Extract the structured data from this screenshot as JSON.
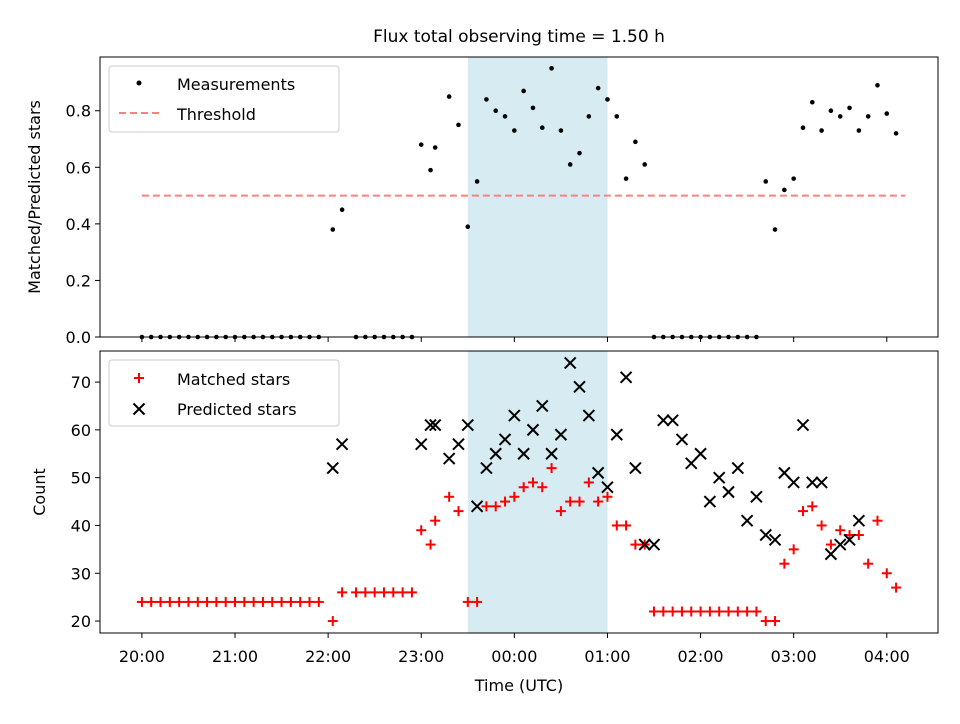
{
  "figure": {
    "title": "Flux total observing time = 1.50 h",
    "xlabel": "Time (UTC)",
    "x_ticks": [
      "20:00",
      "21:00",
      "22:00",
      "23:00",
      "00:00",
      "01:00",
      "02:00",
      "03:00",
      "04:00"
    ]
  },
  "colors": {
    "measurements": "#000000",
    "threshold": "#ff7f7f",
    "matched": "#ff0000",
    "predicted": "#000000",
    "shade": "#add8e6"
  },
  "chart_data": [
    {
      "type": "scatter",
      "ylabel": "Matched/Predicted stars",
      "ylim": [
        0,
        0.99
      ],
      "yticks": [
        "0.0",
        "0.2",
        "0.4",
        "0.6",
        "0.8"
      ],
      "shaded_span_hours": [
        23.5,
        25.0
      ],
      "legend": {
        "placement": "upper-left",
        "entries": [
          "Measurements",
          "Threshold"
        ]
      },
      "threshold": {
        "name": "Threshold",
        "value": 0.5,
        "x_range": [
          20.0,
          28.2
        ]
      },
      "series": [
        {
          "name": "Measurements",
          "marker": "dot",
          "x": [
            20.0,
            20.1,
            20.2,
            20.3,
            20.4,
            20.5,
            20.6,
            20.7,
            20.8,
            20.9,
            21.0,
            21.1,
            21.2,
            21.3,
            21.4,
            21.5,
            21.6,
            21.7,
            21.8,
            21.9,
            22.05,
            22.15,
            22.3,
            22.4,
            22.5,
            22.6,
            22.7,
            22.8,
            22.9,
            23.0,
            23.1,
            23.15,
            23.3,
            23.4,
            23.5,
            23.6,
            23.7,
            23.8,
            23.9,
            24.0,
            24.1,
            24.2,
            24.3,
            24.4,
            24.5,
            24.6,
            24.7,
            24.8,
            24.9,
            25.0,
            25.1,
            25.2,
            25.3,
            25.4,
            25.5,
            25.6,
            25.7,
            25.8,
            25.9,
            26.0,
            26.1,
            26.2,
            26.3,
            26.4,
            26.5,
            26.6,
            26.7,
            26.8,
            26.9,
            27.0,
            27.1,
            27.2,
            27.3,
            27.4,
            27.5,
            27.6,
            27.7,
            27.8,
            27.9,
            28.0,
            28.1
          ],
          "y": [
            0,
            0,
            0,
            0,
            0,
            0,
            0,
            0,
            0,
            0,
            0,
            0,
            0,
            0,
            0,
            0,
            0,
            0,
            0,
            0,
            0.38,
            0.45,
            0,
            0,
            0,
            0,
            0,
            0,
            0,
            0.68,
            0.59,
            0.67,
            0.85,
            0.75,
            0.39,
            0.55,
            0.84,
            0.8,
            0.78,
            0.73,
            0.87,
            0.81,
            0.74,
            0.95,
            0.73,
            0.61,
            0.65,
            0.78,
            0.88,
            0.84,
            0.78,
            0.56,
            0.69,
            0.61,
            0,
            0,
            0,
            0,
            0,
            0,
            0,
            0,
            0,
            0,
            0,
            0,
            0.55,
            0.38,
            0.52,
            0.56,
            0.74,
            0.83,
            0.73,
            0.8,
            0.78,
            0.81,
            0.73,
            0.78,
            0.89,
            0.79,
            0.72
          ]
        }
      ]
    },
    {
      "type": "scatter",
      "ylabel": "Count",
      "ylim": [
        17.5,
        76.5
      ],
      "yticks": [
        "20",
        "30",
        "40",
        "50",
        "60",
        "70"
      ],
      "shaded_span_hours": [
        23.5,
        25.0
      ],
      "legend": {
        "placement": "upper-left",
        "entries": [
          "Matched stars",
          "Predicted stars"
        ]
      },
      "series": [
        {
          "name": "Matched stars",
          "marker": "plus",
          "x": [
            20.0,
            20.1,
            20.2,
            20.3,
            20.4,
            20.5,
            20.6,
            20.7,
            20.8,
            20.9,
            21.0,
            21.1,
            21.2,
            21.3,
            21.4,
            21.5,
            21.6,
            21.7,
            21.8,
            21.9,
            22.05,
            22.15,
            22.3,
            22.4,
            22.5,
            22.6,
            22.7,
            22.8,
            22.9,
            23.0,
            23.1,
            23.15,
            23.3,
            23.4,
            23.5,
            23.6,
            23.7,
            23.8,
            23.9,
            24.0,
            24.1,
            24.2,
            24.3,
            24.4,
            24.5,
            24.6,
            24.7,
            24.8,
            24.9,
            25.0,
            25.1,
            25.2,
            25.3,
            25.4,
            25.5,
            25.6,
            25.7,
            25.8,
            25.9,
            26.0,
            26.1,
            26.2,
            26.3,
            26.4,
            26.5,
            26.6,
            26.7,
            26.8,
            26.9,
            27.0,
            27.1,
            27.2,
            27.3,
            27.4,
            27.5,
            27.6,
            27.7,
            27.8,
            27.9,
            28.0,
            28.1
          ],
          "y": [
            24,
            24,
            24,
            24,
            24,
            24,
            24,
            24,
            24,
            24,
            24,
            24,
            24,
            24,
            24,
            24,
            24,
            24,
            24,
            24,
            20,
            26,
            26,
            26,
            26,
            26,
            26,
            26,
            26,
            39,
            36,
            41,
            46,
            43,
            24,
            24,
            44,
            44,
            45,
            46,
            48,
            49,
            48,
            52,
            43,
            45,
            45,
            49,
            45,
            46,
            40,
            40,
            36,
            36,
            22,
            22,
            22,
            22,
            22,
            22,
            22,
            22,
            22,
            22,
            22,
            22,
            20,
            20,
            32,
            35,
            43,
            44,
            40,
            36,
            39,
            38,
            38,
            32,
            41,
            30,
            27
          ]
        },
        {
          "name": "Predicted stars",
          "marker": "x",
          "x": [
            22.05,
            22.15,
            23.0,
            23.1,
            23.15,
            23.3,
            23.4,
            23.5,
            23.6,
            23.7,
            23.8,
            23.9,
            24.0,
            24.1,
            24.2,
            24.3,
            24.4,
            24.5,
            24.6,
            24.7,
            24.8,
            24.9,
            25.0,
            25.1,
            25.2,
            25.3,
            25.4,
            25.5,
            25.6,
            25.7,
            25.8,
            25.9,
            26.0,
            26.1,
            26.2,
            26.3,
            26.4,
            26.5,
            26.6,
            26.7,
            26.8,
            26.9,
            27.0,
            27.1,
            27.2,
            27.3,
            27.4,
            27.5,
            27.6,
            27.7
          ],
          "y": [
            52,
            57,
            57,
            61,
            61,
            54,
            57,
            61,
            44,
            52,
            55,
            58,
            63,
            55,
            60,
            65,
            55,
            59,
            74,
            69,
            63,
            51,
            48,
            59,
            71,
            52,
            36,
            36,
            62,
            62,
            58,
            53,
            55,
            45,
            50,
            47,
            52,
            41,
            46,
            38,
            37,
            51,
            49,
            61,
            49,
            49,
            34,
            36,
            37,
            41
          ]
        }
      ]
    }
  ]
}
